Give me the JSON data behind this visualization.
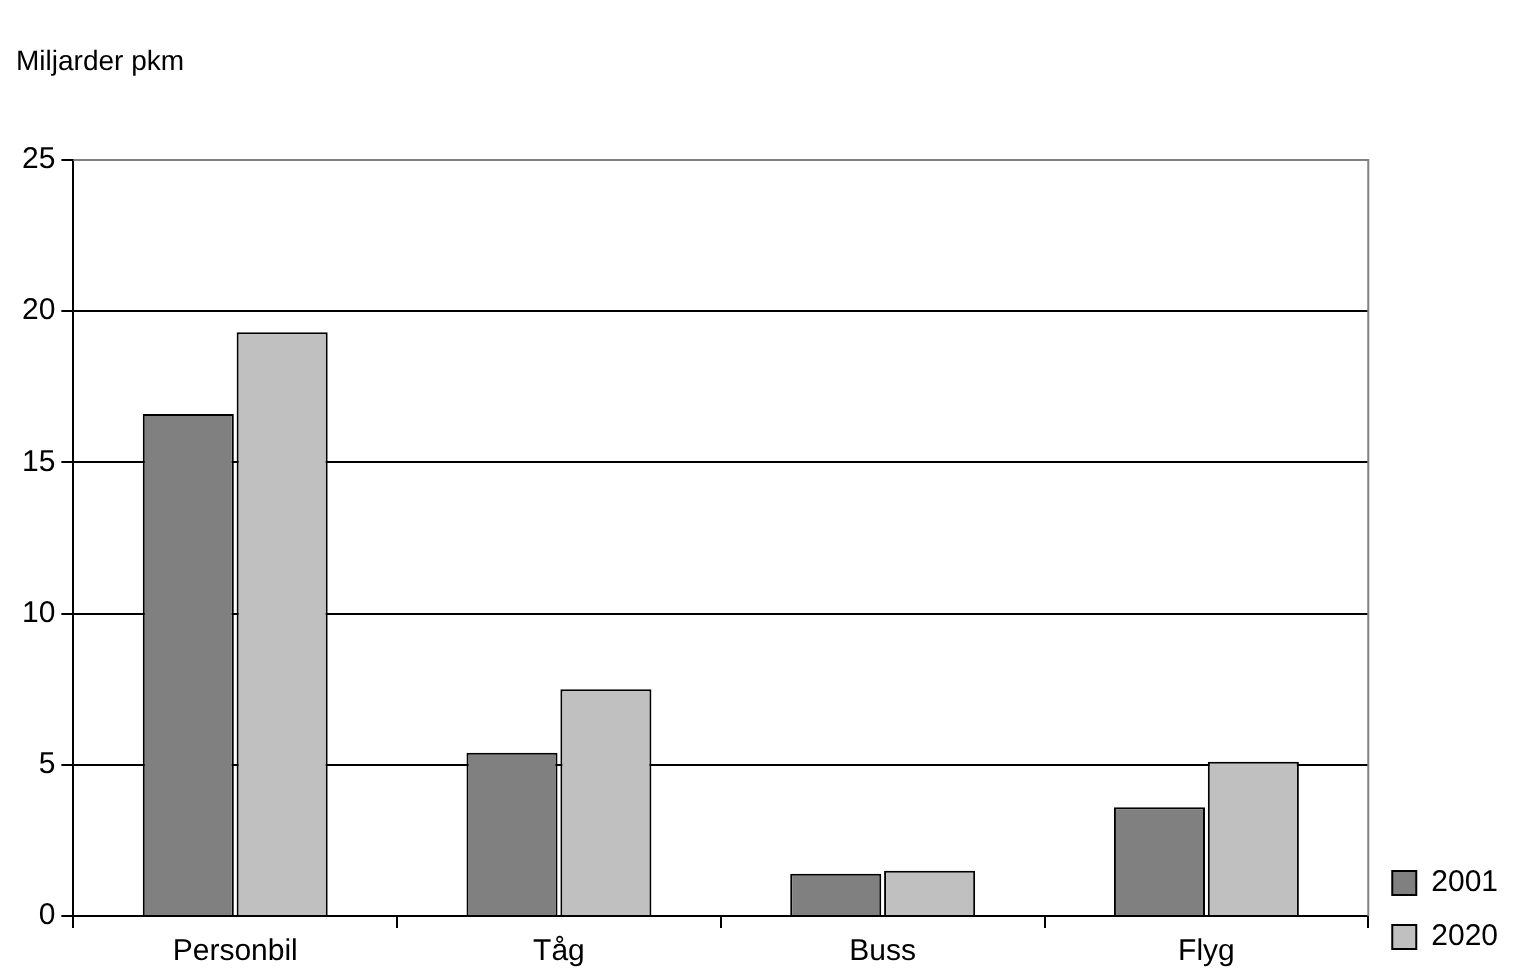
{
  "chart_data": {
    "type": "bar",
    "ylabel": "Miljarder pkm",
    "categories": [
      "Personbil",
      "Tåg",
      "Buss",
      "Flyg"
    ],
    "series": [
      {
        "name": "2001",
        "color": "#808080",
        "values": [
          16.6,
          5.4,
          1.4,
          3.6
        ]
      },
      {
        "name": "2020",
        "color": "#c0c0c0",
        "values": [
          19.3,
          7.5,
          1.5,
          5.1
        ]
      }
    ],
    "ylim": [
      0,
      25
    ],
    "yticks": [
      0,
      5,
      10,
      15,
      20,
      25
    ],
    "grid": "y",
    "legend": "right"
  }
}
